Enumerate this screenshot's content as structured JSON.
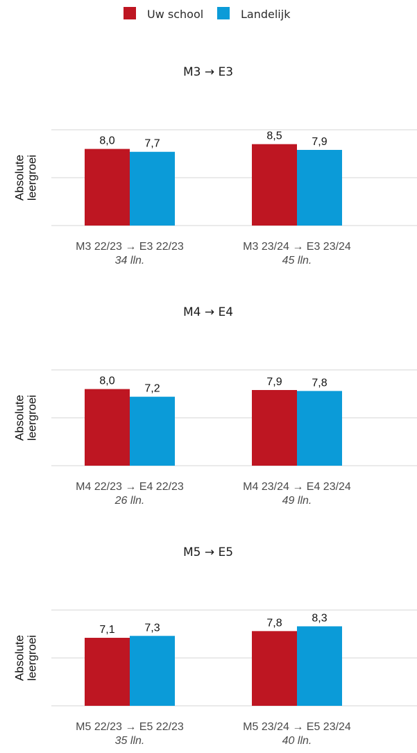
{
  "legend": {
    "items": [
      {
        "label": "Uw school",
        "color": "#be1622"
      },
      {
        "label": "Landelijk",
        "color": "#0b9bd8"
      }
    ]
  },
  "colors": {
    "school": "#be1622",
    "national": "#0b9bd8",
    "grid": "#e3e3e3"
  },
  "chart_data": [
    {
      "type": "bar",
      "title": "M3 → E3",
      "ylabel": "Absolute leergroei",
      "ylim": [
        0,
        10
      ],
      "grid": true,
      "legend_position": "top-center",
      "categories": [
        {
          "label": "M3 22/23 → E3 22/23",
          "sub": "34 lln."
        },
        {
          "label": "M3 23/24 → E3 23/24",
          "sub": "45 lln."
        }
      ],
      "series": [
        {
          "name": "Uw school",
          "values": [
            8.0,
            8.5
          ],
          "labels": [
            "8,0",
            "8,5"
          ]
        },
        {
          "name": "Landelijk",
          "values": [
            7.7,
            7.9
          ],
          "labels": [
            "7,7",
            "7,9"
          ]
        }
      ]
    },
    {
      "type": "bar",
      "title": "M4 → E4",
      "ylabel": "Absolute leergroei",
      "ylim": [
        0,
        10
      ],
      "grid": true,
      "legend_position": "top-center",
      "categories": [
        {
          "label": "M4 22/23 → E4 22/23",
          "sub": "26 lln."
        },
        {
          "label": "M4 23/24 → E4 23/24",
          "sub": "49 lln."
        }
      ],
      "series": [
        {
          "name": "Uw school",
          "values": [
            8.0,
            7.9
          ],
          "labels": [
            "8,0",
            "7,9"
          ]
        },
        {
          "name": "Landelijk",
          "values": [
            7.2,
            7.8
          ],
          "labels": [
            "7,2",
            "7,8"
          ]
        }
      ]
    },
    {
      "type": "bar",
      "title": "M5 → E5",
      "ylabel": "Absolute leergroei",
      "ylim": [
        0,
        10
      ],
      "grid": true,
      "legend_position": "top-center",
      "categories": [
        {
          "label": "M5 22/23 → E5 22/23",
          "sub": "35 lln."
        },
        {
          "label": "M5 23/24 → E5 23/24",
          "sub": "40 lln."
        }
      ],
      "series": [
        {
          "name": "Uw school",
          "values": [
            7.1,
            7.8
          ],
          "labels": [
            "7,1",
            "7,8"
          ]
        },
        {
          "name": "Landelijk",
          "values": [
            7.3,
            8.3
          ],
          "labels": [
            "7,3",
            "8,3"
          ]
        }
      ]
    }
  ]
}
